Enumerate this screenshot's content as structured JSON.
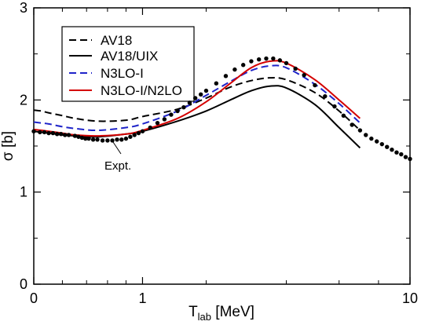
{
  "chart_data": {
    "type": "line",
    "title": "",
    "xlabel_main": "T",
    "xlabel_sub": "lab",
    "xlabel_unit": " [MeV]",
    "ylabel": "σ [b]",
    "x_scale": "log(1+T)-like",
    "xlim": [
      0,
      10
    ],
    "ylim": [
      0,
      3
    ],
    "x_ticks": [
      {
        "value": 0,
        "label": "0"
      },
      {
        "value": 1,
        "label": "1"
      },
      {
        "value": 10,
        "label": "10"
      }
    ],
    "y_ticks": [
      {
        "value": 0,
        "label": "0"
      },
      {
        "value": 1,
        "label": "1"
      },
      {
        "value": 2,
        "label": "2"
      },
      {
        "value": 3,
        "label": "3"
      }
    ],
    "legend_position": "top-left",
    "series": [
      {
        "name": "AV18",
        "color": "#000000",
        "dash": "dashed",
        "points": [
          [
            0,
            1.89
          ],
          [
            0.05,
            1.88
          ],
          [
            0.1,
            1.86
          ],
          [
            0.2,
            1.83
          ],
          [
            0.3,
            1.8
          ],
          [
            0.5,
            1.77
          ],
          [
            0.8,
            1.78
          ],
          [
            1.0,
            1.82
          ],
          [
            1.5,
            1.9
          ],
          [
            2.0,
            2.02
          ],
          [
            2.5,
            2.14
          ],
          [
            3.0,
            2.21
          ],
          [
            3.5,
            2.24
          ],
          [
            4.0,
            2.22
          ],
          [
            5.0,
            2.08
          ],
          [
            6.0,
            1.88
          ],
          [
            7.0,
            1.67
          ]
        ]
      },
      {
        "name": "AV18/UIX",
        "color": "#000000",
        "dash": "solid",
        "points": [
          [
            0,
            1.66
          ],
          [
            0.05,
            1.65
          ],
          [
            0.1,
            1.64
          ],
          [
            0.2,
            1.62
          ],
          [
            0.3,
            1.61
          ],
          [
            0.5,
            1.6
          ],
          [
            0.8,
            1.63
          ],
          [
            1.0,
            1.66
          ],
          [
            1.5,
            1.77
          ],
          [
            2.0,
            1.88
          ],
          [
            2.5,
            2.0
          ],
          [
            3.0,
            2.1
          ],
          [
            3.5,
            2.15
          ],
          [
            4.0,
            2.13
          ],
          [
            5.0,
            1.95
          ],
          [
            6.0,
            1.7
          ],
          [
            7.0,
            1.48
          ]
        ]
      },
      {
        "name": "N3LO-I",
        "color": "#1f24c9",
        "dash": "dashed",
        "points": [
          [
            0,
            1.76
          ],
          [
            0.05,
            1.75
          ],
          [
            0.1,
            1.74
          ],
          [
            0.2,
            1.71
          ],
          [
            0.3,
            1.69
          ],
          [
            0.5,
            1.67
          ],
          [
            0.8,
            1.7
          ],
          [
            1.0,
            1.74
          ],
          [
            1.5,
            1.88
          ],
          [
            2.0,
            2.05
          ],
          [
            2.5,
            2.2
          ],
          [
            3.0,
            2.32
          ],
          [
            3.5,
            2.37
          ],
          [
            4.0,
            2.35
          ],
          [
            5.0,
            2.17
          ],
          [
            6.0,
            1.96
          ],
          [
            7.0,
            1.75
          ]
        ]
      },
      {
        "name": "N3LO-I/N2LO",
        "color": "#d40000",
        "dash": "solid",
        "points": [
          [
            0,
            1.68
          ],
          [
            0.05,
            1.67
          ],
          [
            0.1,
            1.66
          ],
          [
            0.2,
            1.64
          ],
          [
            0.3,
            1.62
          ],
          [
            0.5,
            1.61
          ],
          [
            0.8,
            1.63
          ],
          [
            1.0,
            1.67
          ],
          [
            1.5,
            1.8
          ],
          [
            2.0,
            1.98
          ],
          [
            2.5,
            2.18
          ],
          [
            3.0,
            2.35
          ],
          [
            3.5,
            2.42
          ],
          [
            4.0,
            2.4
          ],
          [
            5.0,
            2.22
          ],
          [
            6.0,
            2.0
          ],
          [
            7.0,
            1.8
          ]
        ]
      }
    ],
    "experiment": {
      "label": "Expt.",
      "color": "#000000",
      "points": [
        [
          0.0,
          1.66
        ],
        [
          0.04,
          1.65
        ],
        [
          0.07,
          1.65
        ],
        [
          0.1,
          1.64
        ],
        [
          0.13,
          1.64
        ],
        [
          0.16,
          1.63
        ],
        [
          0.19,
          1.63
        ],
        [
          0.22,
          1.62
        ],
        [
          0.25,
          1.62
        ],
        [
          0.3,
          1.61
        ],
        [
          0.33,
          1.6
        ],
        [
          0.36,
          1.59
        ],
        [
          0.39,
          1.58
        ],
        [
          0.42,
          1.58
        ],
        [
          0.46,
          1.57
        ],
        [
          0.5,
          1.57
        ],
        [
          0.55,
          1.56
        ],
        [
          0.6,
          1.56
        ],
        [
          0.65,
          1.56
        ],
        [
          0.7,
          1.57
        ],
        [
          0.75,
          1.57
        ],
        [
          0.8,
          1.58
        ],
        [
          0.85,
          1.6
        ],
        [
          0.9,
          1.62
        ],
        [
          0.95,
          1.64
        ],
        [
          1.0,
          1.66
        ],
        [
          1.1,
          1.7
        ],
        [
          1.2,
          1.75
        ],
        [
          1.3,
          1.79
        ],
        [
          1.4,
          1.84
        ],
        [
          1.5,
          1.88
        ],
        [
          1.6,
          1.92
        ],
        [
          1.7,
          1.97
        ],
        [
          1.8,
          2.02
        ],
        [
          1.9,
          2.06
        ],
        [
          2.0,
          2.1
        ],
        [
          2.2,
          2.18
        ],
        [
          2.4,
          2.26
        ],
        [
          2.6,
          2.33
        ],
        [
          2.8,
          2.38
        ],
        [
          3.0,
          2.42
        ],
        [
          3.2,
          2.44
        ],
        [
          3.4,
          2.45
        ],
        [
          3.6,
          2.45
        ],
        [
          3.8,
          2.43
        ],
        [
          4.0,
          2.4
        ],
        [
          4.3,
          2.34
        ],
        [
          4.6,
          2.27
        ],
        [
          5.0,
          2.16
        ],
        [
          5.4,
          2.04
        ],
        [
          5.8,
          1.93
        ],
        [
          6.2,
          1.83
        ],
        [
          6.6,
          1.73
        ],
        [
          7.0,
          1.67
        ],
        [
          7.3,
          1.62
        ],
        [
          7.6,
          1.58
        ],
        [
          7.9,
          1.55
        ],
        [
          8.2,
          1.52
        ],
        [
          8.5,
          1.49
        ],
        [
          8.8,
          1.46
        ],
        [
          9.1,
          1.43
        ],
        [
          9.4,
          1.41
        ],
        [
          9.7,
          1.38
        ],
        [
          10.0,
          1.36
        ]
      ]
    }
  }
}
